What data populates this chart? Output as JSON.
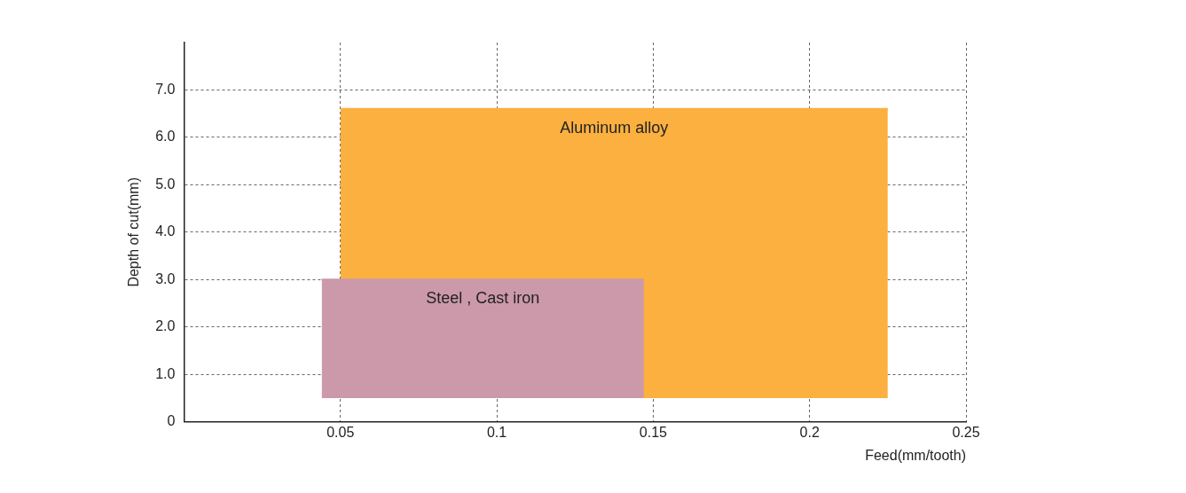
{
  "chart_data": {
    "type": "line",
    "xlabel": "Feed(mm/tooth)",
    "ylabel": "Depth of cut(mm)",
    "xlim": [
      0,
      0.25
    ],
    "xticks": [
      0.05,
      0.1,
      0.15,
      0.2,
      0.25
    ],
    "ylim": [
      0,
      8
    ],
    "yticks": [
      0,
      {
        "value": 1,
        "label": "1.0"
      },
      {
        "value": 2,
        "label": "2.0"
      },
      {
        "value": 3,
        "label": "3.0"
      },
      {
        "value": 4,
        "label": "4.0"
      },
      {
        "value": 5,
        "label": "5.0"
      },
      {
        "value": 6,
        "label": "6.0"
      },
      {
        "value": 7,
        "label": "7.0"
      }
    ],
    "grid": true,
    "legend": false,
    "series": [
      {
        "name": "Aluminum alloy",
        "color": "#fbb040",
        "x": [
          0.05,
          0.225
        ],
        "values": [
          6.6,
          6.6
        ],
        "lower": [
          0.5,
          0.5
        ],
        "upper": [
          6.6,
          6.6
        ]
      },
      {
        "name": "Steel , Cast iron",
        "color": "#cc99aa",
        "x": [
          0.044,
          0.147
        ],
        "values": [
          3.0,
          3.0
        ],
        "lower": [
          0.5,
          0.5
        ],
        "upper": [
          3.0,
          3.0
        ]
      }
    ]
  }
}
